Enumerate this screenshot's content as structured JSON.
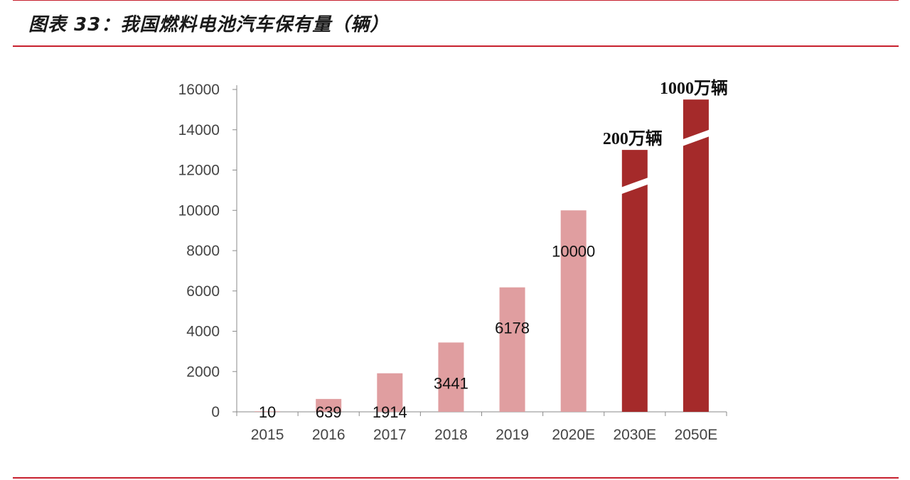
{
  "header": {
    "title": "图表 33：我国燃料电池汽车保有量（辆）"
  },
  "chart_data": {
    "type": "bar",
    "title": "图表 33：我国燃料电池汽车保有量（辆）",
    "xlabel": "",
    "ylabel": "",
    "ylim": [
      0,
      16000
    ],
    "yticks": [
      "0",
      "2000",
      "4000",
      "6000",
      "8000",
      "10000",
      "12000",
      "14000",
      "16000"
    ],
    "categories": [
      "2015",
      "2016",
      "2017",
      "2018",
      "2019",
      "2020E",
      "2030E",
      "2050E"
    ],
    "values": [
      10,
      639,
      1914,
      3441,
      6178,
      10000,
      13000,
      15500
    ],
    "data_labels": [
      "10",
      "639",
      "1914",
      "3441",
      "6178",
      "10000",
      "",
      ""
    ],
    "callouts": [
      "",
      "",
      "",
      "",
      "",
      "",
      "200万辆",
      "1000万辆"
    ],
    "axis_breaks": [
      false,
      false,
      false,
      false,
      false,
      false,
      true,
      true
    ],
    "bar_colors": [
      "#e09ea0",
      "#e09ea0",
      "#e09ea0",
      "#e09ea0",
      "#e09ea0",
      "#e09ea0",
      "#a52a2a",
      "#a52a2a"
    ],
    "grid": false,
    "legend": "none"
  },
  "colors": {
    "accent": "#c7202e",
    "actual_bar": "#e09ea0",
    "projection_bar": "#a52a2a",
    "axis": "#8a8a8a"
  }
}
